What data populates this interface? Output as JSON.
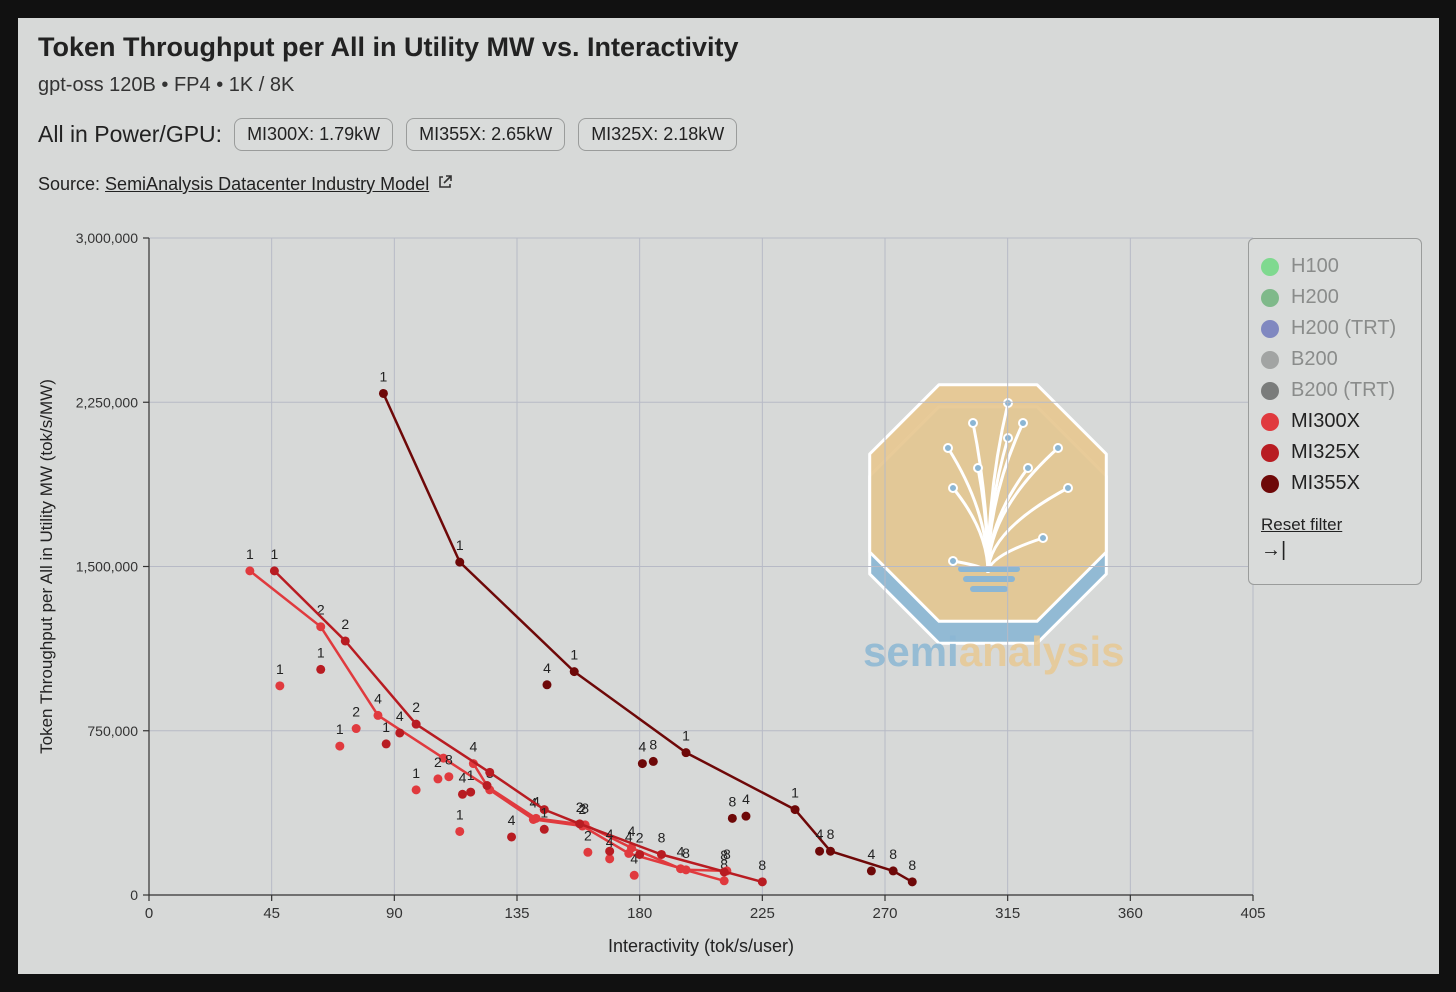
{
  "header": {
    "title": "Token Throughput per All in Utility MW vs. Interactivity",
    "subtitle": "gpt-oss 120B • FP4 • 1K / 8K",
    "power_label": "All in Power/GPU:",
    "power_pills": [
      "MI300X: 1.79kW",
      "MI355X: 2.65kW",
      "MI325X: 2.18kW"
    ],
    "source_label": "Source:",
    "source_link": "SemiAnalysis Datacenter Industry Model"
  },
  "watermark": {
    "text_a": "semi",
    "text_b": "analysis"
  },
  "legend": {
    "items": [
      {
        "label": "H100",
        "color": "#7fd98f",
        "active": false
      },
      {
        "label": "H200",
        "color": "#7fb98a",
        "active": false
      },
      {
        "label": "H200 (TRT)",
        "color": "#8088c0",
        "active": false
      },
      {
        "label": "B200",
        "color": "#a2a4a3",
        "active": false
      },
      {
        "label": "B200 (TRT)",
        "color": "#7a7c7b",
        "active": false
      },
      {
        "label": "MI300X",
        "color": "#e03a3e",
        "active": true
      },
      {
        "label": "MI325X",
        "color": "#b81c22",
        "active": true
      },
      {
        "label": "MI355X",
        "color": "#6e0808",
        "active": true
      }
    ],
    "reset_label": "Reset filter",
    "collapse_glyph": "→|"
  },
  "chart_data": {
    "type": "scatter",
    "title": "Token Throughput per All in Utility MW vs. Interactivity",
    "xlabel": "Interactivity (tok/s/user)",
    "ylabel": "Token Throughput per All in Utility MW (tok/s/MW)",
    "xlim": [
      0,
      405
    ],
    "ylim": [
      0,
      3000000
    ],
    "xticks": [
      0,
      45,
      90,
      135,
      180,
      225,
      270,
      315,
      360,
      405
    ],
    "xtick_labels": [
      "0",
      "45",
      "90",
      "135",
      "180",
      "225",
      "270",
      "315",
      "360",
      "405"
    ],
    "yticks": [
      0,
      750000,
      1500000,
      2250000,
      3000000
    ],
    "ytick_labels": [
      "0",
      "750,000",
      "1,500,000",
      "2,250,000",
      "3,000,000"
    ],
    "grid": true,
    "series": [
      {
        "name": "MI300X",
        "color": "#e03a3e",
        "lines": [
          [
            [
              37,
              1480000
            ],
            [
              63,
              1225000
            ],
            [
              84,
              820000
            ],
            [
              108,
              625000
            ],
            [
              142,
              350000
            ],
            [
              160,
              320000
            ],
            [
              177,
              215000
            ],
            [
              195,
              120000
            ],
            [
              211,
              65000
            ]
          ],
          [
            [
              119,
              600000
            ],
            [
              125,
              480000
            ],
            [
              141,
              345000
            ],
            [
              159,
              315000
            ],
            [
              176,
              190000
            ],
            [
              197,
              115000
            ],
            [
              212,
              110000
            ]
          ]
        ],
        "points": [
          {
            "x": 37,
            "y": 1480000,
            "label": "1"
          },
          {
            "x": 63,
            "y": 1225000,
            "label": "2"
          },
          {
            "x": 84,
            "y": 820000,
            "label": "4"
          },
          {
            "x": 108,
            "y": 625000,
            "label": ""
          },
          {
            "x": 142,
            "y": 350000,
            "label": "4"
          },
          {
            "x": 160,
            "y": 320000,
            "label": "8"
          },
          {
            "x": 177,
            "y": 215000,
            "label": "4"
          },
          {
            "x": 195,
            "y": 120000,
            "label": "4"
          },
          {
            "x": 211,
            "y": 65000,
            "label": "8"
          },
          {
            "x": 119,
            "y": 600000,
            "label": "4"
          },
          {
            "x": 125,
            "y": 480000,
            "label": "8"
          },
          {
            "x": 141,
            "y": 345000,
            "label": "4"
          },
          {
            "x": 159,
            "y": 315000,
            "label": "2"
          },
          {
            "x": 176,
            "y": 190000,
            "label": "4"
          },
          {
            "x": 197,
            "y": 115000,
            "label": "8"
          },
          {
            "x": 212,
            "y": 110000,
            "label": "8"
          },
          {
            "x": 48,
            "y": 955000,
            "label": "1"
          },
          {
            "x": 70,
            "y": 680000,
            "label": "1"
          },
          {
            "x": 76,
            "y": 760000,
            "label": "2"
          },
          {
            "x": 98,
            "y": 480000,
            "label": "1"
          },
          {
            "x": 106,
            "y": 530000,
            "label": "2"
          },
          {
            "x": 110,
            "y": 540000,
            "label": "8"
          },
          {
            "x": 114,
            "y": 290000,
            "label": "1"
          },
          {
            "x": 161,
            "y": 195000,
            "label": "2"
          },
          {
            "x": 169,
            "y": 165000,
            "label": "4"
          },
          {
            "x": 178,
            "y": 90000,
            "label": "4"
          }
        ]
      },
      {
        "name": "MI325X",
        "color": "#b81c22",
        "lines": [
          [
            [
              46,
              1480000
            ],
            [
              72,
              1160000
            ],
            [
              98,
              780000
            ],
            [
              125,
              560000
            ],
            [
              145,
              390000
            ],
            [
              158,
              325000
            ],
            [
              188,
              185000
            ],
            [
              225,
              60000
            ]
          ]
        ],
        "points": [
          {
            "x": 46,
            "y": 1480000,
            "label": "1"
          },
          {
            "x": 72,
            "y": 1160000,
            "label": "2"
          },
          {
            "x": 98,
            "y": 780000,
            "label": "2"
          },
          {
            "x": 125,
            "y": 560000,
            "label": ""
          },
          {
            "x": 145,
            "y": 390000,
            "label": ""
          },
          {
            "x": 158,
            "y": 325000,
            "label": "2"
          },
          {
            "x": 188,
            "y": 185000,
            "label": "8"
          },
          {
            "x": 225,
            "y": 60000,
            "label": "8"
          },
          {
            "x": 63,
            "y": 1030000,
            "label": "1"
          },
          {
            "x": 87,
            "y": 690000,
            "label": "1"
          },
          {
            "x": 92,
            "y": 740000,
            "label": "4"
          },
          {
            "x": 115,
            "y": 460000,
            "label": "4"
          },
          {
            "x": 118,
            "y": 470000,
            "label": "1"
          },
          {
            "x": 124,
            "y": 500000,
            "label": ""
          },
          {
            "x": 133,
            "y": 265000,
            "label": "4"
          },
          {
            "x": 145,
            "y": 300000,
            "label": "1"
          },
          {
            "x": 169,
            "y": 200000,
            "label": "4"
          },
          {
            "x": 180,
            "y": 185000,
            "label": "2"
          },
          {
            "x": 211,
            "y": 105000,
            "label": "8"
          }
        ]
      },
      {
        "name": "MI355X",
        "color": "#6e0808",
        "lines": [
          [
            [
              86,
              2290000
            ],
            [
              114,
              1520000
            ],
            [
              156,
              1020000
            ],
            [
              197,
              650000
            ],
            [
              237,
              390000
            ],
            [
              250,
              200000
            ],
            [
              273,
              110000
            ],
            [
              280,
              60000
            ]
          ]
        ],
        "points": [
          {
            "x": 86,
            "y": 2290000,
            "label": "1"
          },
          {
            "x": 114,
            "y": 1520000,
            "label": "1"
          },
          {
            "x": 156,
            "y": 1020000,
            "label": "1"
          },
          {
            "x": 197,
            "y": 650000,
            "label": "1"
          },
          {
            "x": 237,
            "y": 390000,
            "label": "1"
          },
          {
            "x": 250,
            "y": 200000,
            "label": "8"
          },
          {
            "x": 273,
            "y": 110000,
            "label": "8"
          },
          {
            "x": 280,
            "y": 60000,
            "label": "8"
          },
          {
            "x": 146,
            "y": 960000,
            "label": "4"
          },
          {
            "x": 181,
            "y": 600000,
            "label": "4"
          },
          {
            "x": 185,
            "y": 610000,
            "label": "8"
          },
          {
            "x": 214,
            "y": 350000,
            "label": "8"
          },
          {
            "x": 219,
            "y": 360000,
            "label": "4"
          },
          {
            "x": 246,
            "y": 200000,
            "label": "4"
          },
          {
            "x": 265,
            "y": 110000,
            "label": "4"
          }
        ]
      }
    ]
  }
}
